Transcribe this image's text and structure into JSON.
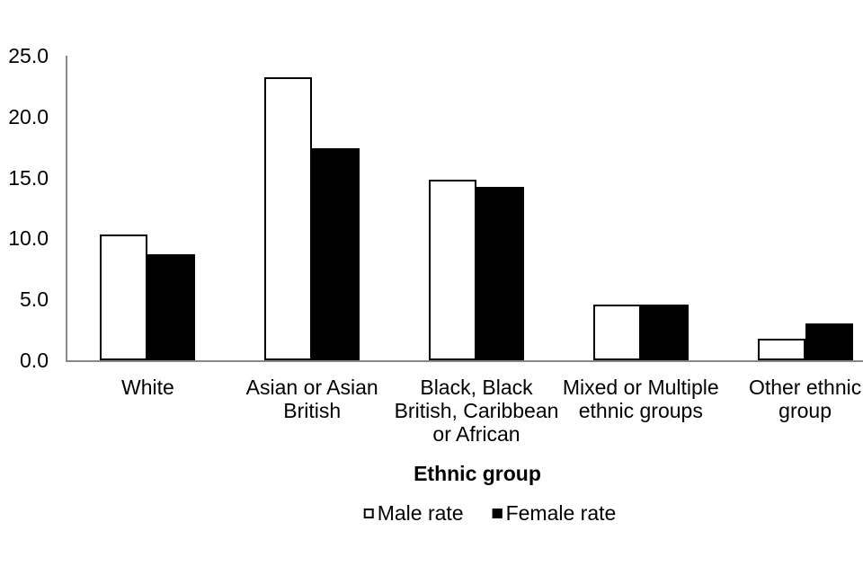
{
  "chart_data": {
    "type": "bar",
    "title": "",
    "xlabel": "Ethnic group",
    "ylabel": "",
    "ylim": [
      0,
      25
    ],
    "yticks": [
      0,
      5,
      10,
      15,
      20,
      25
    ],
    "ytick_labels": [
      "0.0",
      "5.0",
      "10.0",
      "15.0",
      "20.0",
      "25.0"
    ],
    "grid": false,
    "legend_position": "bottom-center",
    "categories": [
      "White",
      "Asian or Asian British",
      "Black, Black British, Caribbean or African",
      "Mixed or Multiple ethnic groups",
      "Other ethnic group"
    ],
    "category_label_lines": [
      [
        "White"
      ],
      [
        "Asian or Asian",
        "British"
      ],
      [
        "Black, Black",
        "British, Caribbean",
        "or African"
      ],
      [
        "Mixed or Multiple",
        "ethnic groups"
      ],
      [
        "Other ethnic",
        "group"
      ]
    ],
    "series": [
      {
        "name": "Male rate",
        "fill": "#ffffff",
        "border": "#000000",
        "values": [
          10.3,
          23.2,
          14.8,
          4.6,
          1.8
        ]
      },
      {
        "name": "Female rate",
        "fill": "#000000",
        "border": "#000000",
        "values": [
          8.7,
          17.4,
          14.2,
          4.6,
          3.0
        ]
      }
    ],
    "colors": {
      "axis": "#878787",
      "text": "#000000",
      "background": "#ffffff"
    }
  }
}
